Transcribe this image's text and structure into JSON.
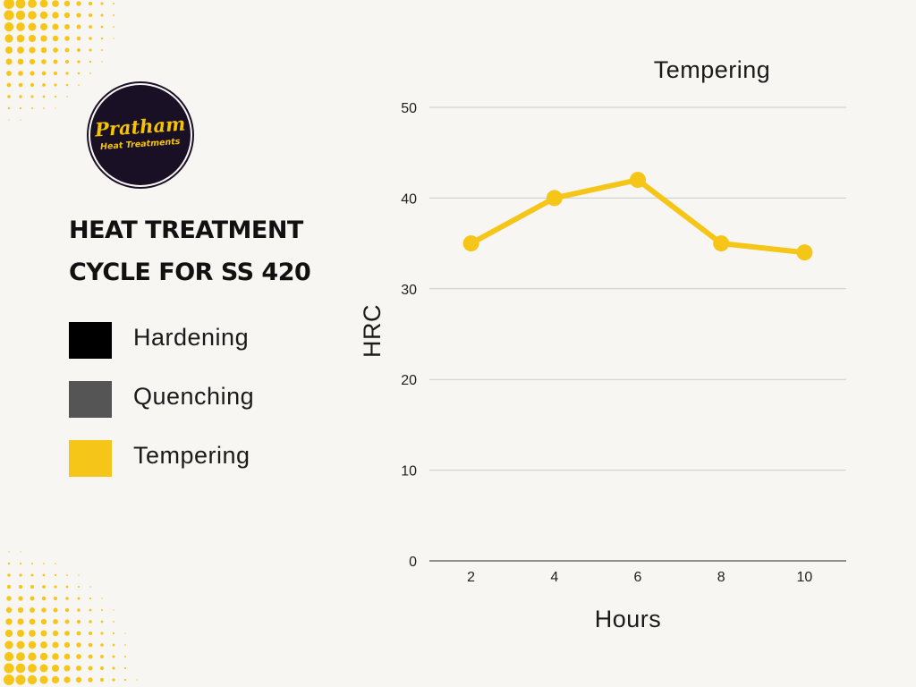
{
  "logo": {
    "name": "Pratham",
    "tagline": "Heat Treatments"
  },
  "heading": "HEAT TREATMENT\nCYCLE FOR SS 420",
  "legend": [
    {
      "label": "Hardening",
      "color": "#000000"
    },
    {
      "label": "Quenching",
      "color": "#555555"
    },
    {
      "label": "Tempering",
      "color": "#f5c518"
    }
  ],
  "colors": {
    "background": "#f8f6f3",
    "accent": "#f5c518",
    "gridline": "#cccccc"
  },
  "chart_data": {
    "type": "line",
    "title": "Tempering",
    "xlabel": "Hours",
    "ylabel": "HRC",
    "categories": [
      "2",
      "4",
      "6",
      "8",
      "10"
    ],
    "series": [
      {
        "name": "Tempering",
        "values": [
          35,
          40,
          42,
          35,
          34
        ],
        "color": "#f5c518"
      }
    ],
    "ylim": [
      0,
      50
    ],
    "yticks": [
      0,
      10,
      20,
      30,
      40,
      50
    ],
    "grid": true
  }
}
